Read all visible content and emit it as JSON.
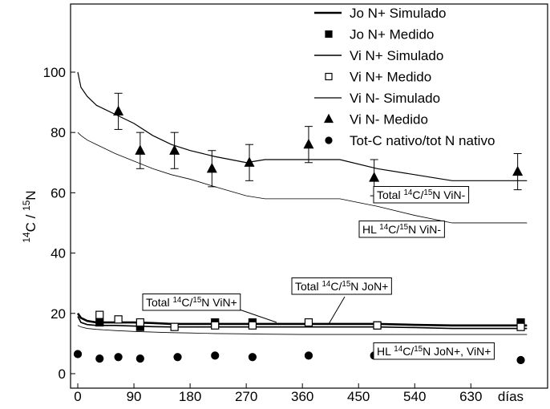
{
  "chart_data": {
    "type": "line",
    "xlabel": "días",
    "ylabel": [
      {
        "t": "14",
        "sup": true
      },
      {
        "t": "C / "
      },
      {
        "t": "15",
        "sup": true
      },
      {
        "t": "N"
      }
    ],
    "xlim": [
      -11.6,
      753
    ],
    "ylim": [
      -4.8,
      122.6
    ],
    "xticks": [
      0,
      90,
      180,
      270,
      360,
      450,
      540,
      630
    ],
    "yticks": [
      0,
      20,
      40,
      60,
      80,
      100
    ],
    "x": [
      0,
      5,
      15,
      30,
      60,
      90,
      120,
      150,
      180,
      220,
      270,
      300,
      360,
      420,
      480,
      540,
      600,
      660,
      720
    ],
    "series": [
      {
        "name": "Jo N+ Simulado",
        "kind": "line",
        "color": "#000000",
        "width": 2.6,
        "values": [
          20,
          18.5,
          17.5,
          17,
          17,
          17,
          16.8,
          16.5,
          16.5,
          16.5,
          16.5,
          16.5,
          16.5,
          16.5,
          16.5,
          16.2,
          16,
          16,
          16
        ]
      },
      {
        "name": "Jo N+ Medido",
        "kind": "points",
        "marker": "square",
        "filled": true,
        "color": "#000000",
        "x": [
          35,
          100,
          220,
          280,
          480,
          710
        ],
        "values": [
          17,
          15.5,
          17,
          17,
          16,
          17
        ]
      },
      {
        "name": "Vi N+ Simulado",
        "kind": "line",
        "color": "#000000",
        "width": 1.6,
        "values": [
          19,
          17,
          16.3,
          16,
          16,
          15.8,
          15.6,
          15.5,
          15.5,
          15.5,
          15.5,
          15.5,
          15.5,
          15.5,
          15.5,
          15.3,
          15,
          15,
          15
        ]
      },
      {
        "name": "Vi N+ Medido",
        "kind": "points",
        "marker": "square",
        "filled": false,
        "color": "#000000",
        "x": [
          35,
          65,
          100,
          155,
          220,
          280,
          370,
          480,
          710
        ],
        "values": [
          19.5,
          18,
          17,
          15.5,
          16,
          16,
          17,
          16,
          15.5
        ]
      },
      {
        "name": "Vi N- Simulado",
        "kind": "line",
        "color": "#000000",
        "width": 1.2,
        "values": [
          100,
          95,
          92,
          89,
          86,
          83,
          79,
          76,
          74,
          72,
          70,
          71,
          71,
          71,
          68,
          66,
          64,
          64,
          64
        ]
      },
      {
        "name": "Vi N- Medido",
        "kind": "points",
        "marker": "triangle",
        "filled": true,
        "color": "#000000",
        "x": [
          65,
          100,
          155,
          215,
          275,
          370,
          475,
          705
        ],
        "values": [
          87,
          74,
          74,
          68,
          70,
          76,
          65,
          67
        ],
        "errors": [
          6,
          6,
          6,
          6,
          6,
          6,
          6,
          6
        ]
      },
      {
        "name": "Tot-C nativo/tot N nativo",
        "kind": "points",
        "marker": "circle",
        "filled": true,
        "color": "#000000",
        "x": [
          0,
          35,
          65,
          100,
          160,
          220,
          280,
          370,
          475,
          710
        ],
        "values": [
          6.5,
          5,
          5.5,
          5,
          5.5,
          6,
          5.5,
          6,
          6,
          4.5
        ]
      },
      {
        "kind": "line",
        "color": "#000000",
        "width": 0.8,
        "values": [
          80,
          79,
          77.5,
          76,
          73,
          70.5,
          68,
          66,
          64.5,
          62,
          59,
          58,
          58,
          58,
          55.5,
          52.5,
          50,
          50,
          50
        ]
      },
      {
        "kind": "line",
        "color": "#000000",
        "width": 0.8,
        "values": [
          16,
          15.5,
          15,
          14.7,
          14.3,
          14,
          13.8,
          13.6,
          13.5,
          13.3,
          13.2,
          13.1,
          13,
          13,
          13,
          13,
          13,
          13,
          13
        ]
      }
    ],
    "annotations": [
      [
        {
          "t": "Total "
        },
        {
          "t": "14",
          "sup": true
        },
        {
          "t": "C/"
        },
        {
          "t": "15",
          "sup": true
        },
        {
          "t": "N ViN-"
        }
      ],
      [
        {
          "t": "HL "
        },
        {
          "t": "14",
          "sup": true
        },
        {
          "t": "C/"
        },
        {
          "t": "15",
          "sup": true
        },
        {
          "t": "N ViN-"
        }
      ],
      [
        {
          "t": "Total "
        },
        {
          "t": "14",
          "sup": true
        },
        {
          "t": "C/"
        },
        {
          "t": "15",
          "sup": true
        },
        {
          "t": "N ViN+"
        }
      ],
      [
        {
          "t": "Total "
        },
        {
          "t": "14",
          "sup": true
        },
        {
          "t": "C/"
        },
        {
          "t": "15",
          "sup": true
        },
        {
          "t": "N JoN+"
        }
      ],
      [
        {
          "t": "HL "
        },
        {
          "t": "14",
          "sup": true
        },
        {
          "t": "C/"
        },
        {
          "t": "15",
          "sup": true
        },
        {
          "t": "N JoN+, ViN+"
        }
      ]
    ]
  }
}
